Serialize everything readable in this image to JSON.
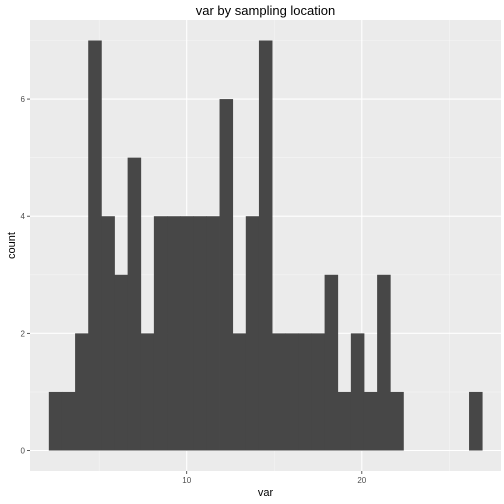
{
  "chart_data": {
    "type": "bar",
    "title": "var by sampling location",
    "xlabel": "var",
    "ylabel": "count",
    "xlim": [
      1.05,
      27.95
    ],
    "ylim": [
      -0.35,
      7.35
    ],
    "x_ticks": [
      10,
      20
    ],
    "y_ticks": [
      0,
      2,
      4,
      6
    ],
    "x_minor_ticks": [
      5,
      15,
      25
    ],
    "y_minor_ticks": [
      1,
      3,
      5,
      7
    ],
    "bin_width": 0.75,
    "bins": [
      {
        "x": 2.5,
        "count": 1
      },
      {
        "x": 3.25,
        "count": 1
      },
      {
        "x": 4.0,
        "count": 2
      },
      {
        "x": 4.75,
        "count": 7
      },
      {
        "x": 5.5,
        "count": 4
      },
      {
        "x": 6.25,
        "count": 3
      },
      {
        "x": 7.0,
        "count": 5
      },
      {
        "x": 7.75,
        "count": 2
      },
      {
        "x": 8.5,
        "count": 4
      },
      {
        "x": 9.25,
        "count": 4
      },
      {
        "x": 10.0,
        "count": 4
      },
      {
        "x": 10.75,
        "count": 4
      },
      {
        "x": 11.5,
        "count": 4
      },
      {
        "x": 12.25,
        "count": 6
      },
      {
        "x": 13.0,
        "count": 2
      },
      {
        "x": 13.75,
        "count": 4
      },
      {
        "x": 14.5,
        "count": 7
      },
      {
        "x": 15.25,
        "count": 2
      },
      {
        "x": 16.0,
        "count": 2
      },
      {
        "x": 16.75,
        "count": 2
      },
      {
        "x": 17.5,
        "count": 2
      },
      {
        "x": 18.25,
        "count": 3
      },
      {
        "x": 19.0,
        "count": 1
      },
      {
        "x": 19.75,
        "count": 2
      },
      {
        "x": 20.5,
        "count": 1
      },
      {
        "x": 21.25,
        "count": 3
      },
      {
        "x": 22.0,
        "count": 1
      },
      {
        "x": 22.75,
        "count": 0
      },
      {
        "x": 23.5,
        "count": 0
      },
      {
        "x": 24.25,
        "count": 0
      },
      {
        "x": 25.0,
        "count": 0
      },
      {
        "x": 25.75,
        "count": 0
      },
      {
        "x": 26.5,
        "count": 1
      }
    ],
    "grid": true,
    "colors": {
      "bar": "#474747",
      "panel": "#ebebeb",
      "grid_major": "#ffffff",
      "grid_minor": "#f5f5f5",
      "tick_label": "#4d4d4d"
    }
  }
}
